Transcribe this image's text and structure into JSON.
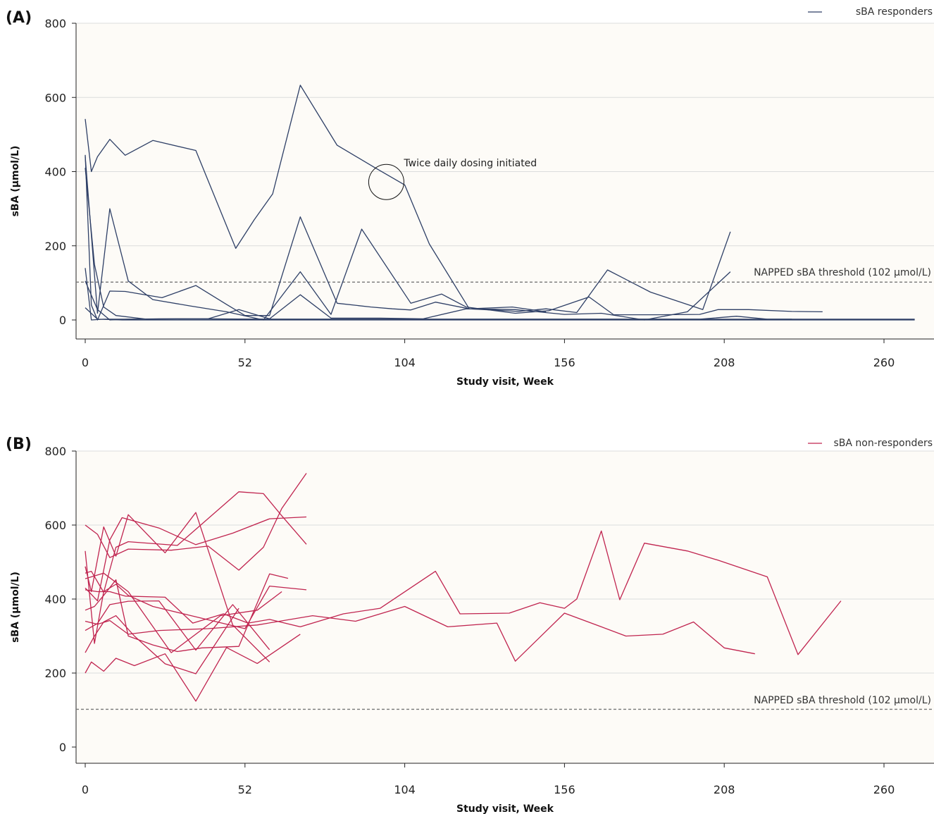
{
  "colors": {
    "plot_background": "#fdfbf7",
    "grid": "#dcdcdc",
    "axis": "#222222",
    "threshold": "#777777",
    "responders": "#2e3f66",
    "non_responders": "#c0244f"
  },
  "chart_data": [
    {
      "panel_label": "(A)",
      "type": "line",
      "xlabel": "Study visit, Week",
      "ylabel": "sBA (µmol/L)",
      "xlim": [
        -3,
        272
      ],
      "ylim": [
        0,
        800
      ],
      "x_ticks": [
        0,
        52,
        104,
        156,
        208,
        260
      ],
      "y_ticks": [
        0,
        200,
        400,
        600,
        800
      ],
      "grid": "horizontal",
      "legend_position": "top-right",
      "legend": [
        {
          "label": "sBA responders",
          "color": "#2e3f66"
        }
      ],
      "threshold": {
        "value": 102,
        "label": "NAPPED sBA threshold (102 µmol/L)"
      },
      "annotation": {
        "text": "Twice daily dosing initiated",
        "x": 98,
        "y": 372
      },
      "series": [
        {
          "x": [
            0,
            2,
            4,
            8,
            13,
            22,
            36,
            49,
            55,
            61,
            70,
            82,
            94,
            104,
            112,
            125,
            141,
            150,
            160,
            170,
            184,
            201,
            210
          ],
          "y": [
            542,
            400,
            440,
            487,
            444,
            484,
            457,
            193,
            270,
            340,
            633,
            471,
            412,
            364,
            205,
            30,
            23,
            30,
            20,
            135,
            75,
            28,
            238
          ]
        },
        {
          "x": [
            0,
            2,
            4,
            8,
            13,
            25,
            36,
            46,
            52,
            60,
            70,
            82,
            93,
            100,
            106,
            114,
            125,
            139,
            150
          ],
          "y": [
            445,
            40,
            0,
            78,
            77,
            60,
            93,
            42,
            12,
            12,
            278,
            45,
            35,
            30,
            27,
            48,
            30,
            35,
            22
          ]
        },
        {
          "x": [
            0,
            4,
            8,
            14,
            22,
            34,
            46,
            58,
            70,
            80,
            90,
            106,
            116,
            124,
            140,
            151,
            164,
            172,
            186,
            200,
            206,
            216,
            230,
            240
          ],
          "y": [
            440,
            18,
            300,
            105,
            55,
            38,
            22,
            0,
            130,
            15,
            245,
            45,
            70,
            35,
            18,
            25,
            62,
            14,
            14,
            15,
            28,
            28,
            23,
            22
          ]
        },
        {
          "x": [
            0,
            4,
            8,
            14,
            24,
            40,
            50,
            60,
            70,
            80,
            96,
            110,
            124,
            140,
            156,
            168,
            182,
            196,
            210
          ],
          "y": [
            105,
            28,
            0,
            2,
            3,
            3,
            28,
            3,
            68,
            5,
            5,
            3,
            30,
            28,
            15,
            18,
            0,
            22,
            130
          ]
        },
        {
          "x": [
            0,
            2,
            6,
            14,
            30,
            50,
            70,
            90,
            110,
            130,
            150,
            170,
            190,
            205,
            220,
            240,
            260,
            270
          ],
          "y": [
            140,
            0,
            2,
            2,
            3,
            2,
            2,
            2,
            2,
            2,
            2,
            2,
            2,
            2,
            2,
            2,
            2,
            2
          ]
        },
        {
          "x": [
            0,
            4,
            12,
            30,
            60,
            80,
            100,
            120,
            140,
            160,
            180,
            200,
            220,
            240,
            260,
            270
          ],
          "y": [
            33,
            2,
            0,
            0,
            0,
            0,
            0,
            0,
            0,
            0,
            0,
            0,
            0,
            0,
            0,
            0
          ]
        },
        {
          "x": [
            0,
            3,
            6,
            10,
            20,
            40,
            60,
            80,
            100,
            120,
            140,
            160,
            180,
            200,
            212,
            222,
            230
          ],
          "y": [
            410,
            150,
            35,
            12,
            2,
            3,
            2,
            2,
            2,
            2,
            2,
            2,
            2,
            2,
            10,
            2,
            2
          ]
        }
      ]
    },
    {
      "panel_label": "(B)",
      "type": "line",
      "xlabel": "Study visit, Week",
      "ylabel": "sBA (µmol/L)",
      "xlim": [
        -3,
        275
      ],
      "ylim": [
        0,
        800
      ],
      "x_ticks": [
        0,
        52,
        104,
        156,
        208,
        260
      ],
      "y_ticks": [
        0,
        200,
        400,
        600,
        800
      ],
      "grid": "horizontal",
      "legend_position": "top-right",
      "legend": [
        {
          "label": "sBA non-responders",
          "color": "#c0244f"
        }
      ],
      "threshold": {
        "value": 102,
        "label": "NAPPED sBA threshold (102 µmol/L)"
      },
      "series": [
        {
          "x": [
            0,
            4,
            8,
            13,
            26,
            35,
            45,
            53,
            60,
            70,
            84,
            96,
            114,
            122,
            138,
            148,
            156,
            160,
            168,
            174,
            182,
            196,
            206,
            222,
            232,
            246
          ],
          "y": [
            425,
            420,
            420,
            408,
            405,
            335,
            360,
            335,
            345,
            325,
            360,
            375,
            475,
            360,
            362,
            390,
            375,
            400,
            584,
            398,
            551,
            530,
            505,
            460,
            250,
            395
          ]
        },
        {
          "x": [
            0,
            4,
            8,
            14,
            24,
            40,
            56,
            74,
            88,
            104,
            118,
            134,
            140,
            156,
            168,
            176,
            188,
            198,
            208,
            218
          ],
          "y": [
            340,
            332,
            342,
            305,
            315,
            320,
            330,
            355,
            340,
            380,
            325,
            335,
            232,
            362,
            325,
            300,
            305,
            338,
            268,
            252
          ]
        },
        {
          "x": [
            0,
            4,
            8,
            14,
            28,
            40,
            50,
            58,
            64,
            72
          ],
          "y": [
            600,
            575,
            512,
            535,
            532,
            543,
            478,
            540,
            645,
            740
          ]
        },
        {
          "x": [
            0,
            2,
            6,
            10,
            14,
            30,
            50,
            58,
            64,
            72
          ],
          "y": [
            470,
            475,
            418,
            540,
            555,
            545,
            690,
            685,
            625,
            548
          ]
        },
        {
          "x": [
            0,
            4,
            8,
            12,
            24,
            36,
            48,
            60,
            72
          ],
          "y": [
            430,
            395,
            560,
            620,
            592,
            547,
            578,
            617,
            622
          ]
        },
        {
          "x": [
            0,
            2,
            6,
            10,
            14,
            26,
            36,
            48,
            60
          ],
          "y": [
            488,
            420,
            595,
            516,
            628,
            525,
            634,
            330,
            230
          ]
        },
        {
          "x": [
            0,
            3,
            6,
            10,
            14,
            22,
            30,
            38,
            50,
            60,
            66
          ],
          "y": [
            370,
            380,
            410,
            452,
            300,
            276,
            258,
            268,
            272,
            468,
            456
          ]
        },
        {
          "x": [
            0,
            3,
            6,
            10,
            14,
            22,
            32,
            42,
            52,
            60,
            72
          ],
          "y": [
            530,
            280,
            420,
            440,
            410,
            380,
            360,
            340,
            320,
            435,
            425
          ]
        },
        {
          "x": [
            0,
            2,
            6,
            10,
            16,
            26,
            36,
            46,
            56,
            70
          ],
          "y": [
            200,
            230,
            205,
            240,
            220,
            252,
            124,
            269,
            226,
            305
          ]
        },
        {
          "x": [
            0,
            4,
            8,
            14,
            24,
            36,
            48,
            60
          ],
          "y": [
            315,
            334,
            385,
            394,
            395,
            262,
            385,
            263
          ]
        },
        {
          "x": [
            0,
            3,
            6,
            10,
            16,
            26,
            36,
            50
          ],
          "y": [
            255,
            300,
            338,
            355,
            300,
            225,
            198,
            375
          ]
        },
        {
          "x": [
            0,
            2,
            6,
            14,
            28,
            44,
            56,
            64
          ],
          "y": [
            455,
            460,
            470,
            420,
            255,
            355,
            370,
            420
          ]
        }
      ]
    }
  ]
}
